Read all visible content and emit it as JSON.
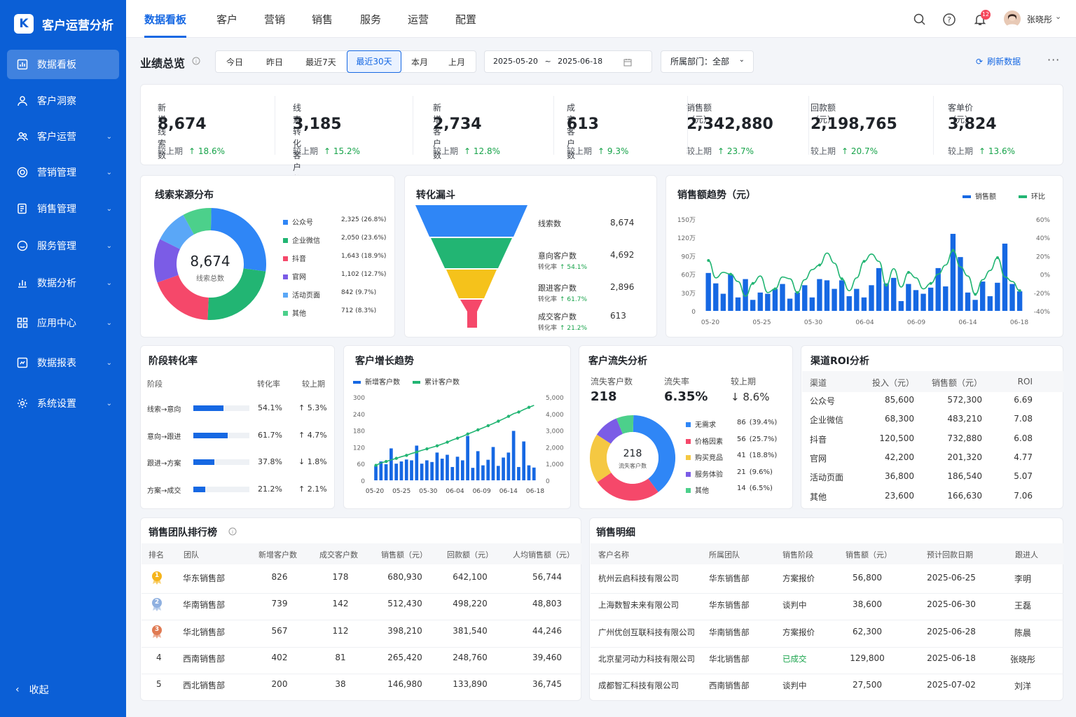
{
  "app": {
    "title": "客户运营分析",
    "logo": "K"
  },
  "sidebar": {
    "items": [
      {
        "label": "数据看板"
      },
      {
        "label": "客户洞察"
      },
      {
        "label": "客户运营"
      },
      {
        "label": "营销管理"
      },
      {
        "label": "销售管理"
      },
      {
        "label": "服务管理"
      },
      {
        "label": "数据分析"
      },
      {
        "label": "应用中心"
      },
      {
        "label": "数据报表"
      },
      {
        "label": "系统设置"
      }
    ],
    "collapse": "收起"
  },
  "topnav": {
    "tabs": [
      "数据看板",
      "客户",
      "营销",
      "销售",
      "服务",
      "运营",
      "配置"
    ],
    "notif_count": "12",
    "user": "张晓彤"
  },
  "toolbar": {
    "title": "业绩总览",
    "ranges": [
      "今日",
      "昨日",
      "最近7天",
      "最近30天",
      "本月",
      "上月"
    ],
    "date_from": "2025-05-20",
    "date_sep": "~",
    "date_to": "2025-06-18",
    "dept": "所属部门：全部",
    "refresh": "刷新数据"
  },
  "kpis": [
    {
      "label": "新增线索数",
      "value": "8,674",
      "cmp": "较上期",
      "delta": "18.6%"
    },
    {
      "label": "线索转化客户数",
      "value": "3,185",
      "cmp": "较上期",
      "delta": "15.2%"
    },
    {
      "label": "新增客户数",
      "value": "2,734",
      "cmp": "较上期",
      "delta": "12.8%"
    },
    {
      "label": "成交客户数",
      "value": "613",
      "cmp": "较上期",
      "delta": "9.3%"
    },
    {
      "label": "销售额（元）",
      "value": "2,342,880",
      "cmp": "较上期",
      "delta": "23.7%"
    },
    {
      "label": "回款额（元）",
      "value": "2,198,765",
      "cmp": "较上期",
      "delta": "20.7%"
    },
    {
      "label": "客单价（元）",
      "value": "3,824",
      "cmp": "较上期",
      "delta": "13.6%"
    }
  ],
  "source": {
    "title": "线索来源分布",
    "total": "8,674",
    "total_label": "线索总数",
    "items": [
      {
        "name": "公众号",
        "value": "2,325",
        "pct": "(26.8%)",
        "share": 26.8,
        "color": "#2f86f6"
      },
      {
        "name": "企业微信",
        "value": "2,050",
        "pct": "(23.6%)",
        "share": 23.6,
        "color": "#22b573"
      },
      {
        "name": "抖音",
        "value": "1,643",
        "pct": "(18.9%)",
        "share": 18.9,
        "color": "#f5486a"
      },
      {
        "name": "官网",
        "value": "1,102",
        "pct": "(12.7%)",
        "share": 12.7,
        "color": "#7b5ce6"
      },
      {
        "name": "活动页面",
        "value": "842",
        "pct": "(9.7%)",
        "share": 9.7,
        "color": "#5aa7f7"
      },
      {
        "name": "其他",
        "value": "712",
        "pct": "(8.3%)",
        "share": 8.3,
        "color": "#4cd08b"
      }
    ]
  },
  "funnel": {
    "title": "转化漏斗",
    "stages": [
      {
        "name": "线索数",
        "value": "8,674",
        "rate_label": "",
        "rate": ""
      },
      {
        "name": "意向客户数",
        "value": "4,692",
        "rate_label": "转化率",
        "rate": "54.1%"
      },
      {
        "name": "跟进客户数",
        "value": "2,896",
        "rate_label": "转化率",
        "rate": "61.7%"
      },
      {
        "name": "成交客户数",
        "value": "613",
        "rate_label": "转化率",
        "rate": "21.2%"
      }
    ]
  },
  "sales_trend": {
    "title": "销售额趋势（元）",
    "legend": [
      "销售额",
      "环比"
    ]
  },
  "stage": {
    "title": "阶段转化率",
    "headers": [
      "阶段",
      "转化率",
      "较上期"
    ],
    "rows": [
      {
        "name": "线索→意向",
        "rate": "54.1%",
        "delta": "5.3%",
        "dir": "up",
        "fill": 0.541
      },
      {
        "name": "意向→跟进",
        "rate": "61.7%",
        "delta": "4.7%",
        "dir": "up",
        "fill": 0.617
      },
      {
        "name": "跟进→方案",
        "rate": "37.8%",
        "delta": "1.8%",
        "dir": "down",
        "fill": 0.378
      },
      {
        "name": "方案→成交",
        "rate": "21.2%",
        "delta": "2.1%",
        "dir": "up",
        "fill": 0.212
      }
    ]
  },
  "growth": {
    "title": "客户增长趋势",
    "legend": [
      "新增客户数",
      "累计客户数"
    ]
  },
  "churn": {
    "title": "客户流失分析",
    "headers": [
      "流失客户数",
      "流失率",
      "较上期"
    ],
    "count": "218",
    "rate": "6.35%",
    "delta": "8.6%",
    "center_label": "流失客户数",
    "reasons": [
      {
        "name": "无需求",
        "value": "86",
        "pct": "(39.4%)",
        "share": 39.4,
        "color": "#2f86f6"
      },
      {
        "name": "价格因素",
        "value": "56",
        "pct": "(25.7%)",
        "share": 25.7,
        "color": "#f5486a"
      },
      {
        "name": "购买竞品",
        "value": "41",
        "pct": "(18.8%)",
        "share": 18.8,
        "color": "#f5c842"
      },
      {
        "name": "服务体验",
        "value": "21",
        "pct": "(9.6%)",
        "share": 9.6,
        "color": "#7b5ce6"
      },
      {
        "name": "其他",
        "value": "14",
        "pct": "(6.5%)",
        "share": 6.5,
        "color": "#4cd08b"
      }
    ]
  },
  "roi": {
    "title": "渠道ROI分析",
    "headers": [
      "渠道",
      "投入（元）",
      "销售额（元）",
      "ROI"
    ],
    "rows": [
      [
        "公众号",
        "85,600",
        "572,300",
        "6.69"
      ],
      [
        "企业微信",
        "68,300",
        "483,210",
        "7.08"
      ],
      [
        "抖音",
        "120,500",
        "732,880",
        "6.08"
      ],
      [
        "官网",
        "42,200",
        "201,320",
        "4.77"
      ],
      [
        "活动页面",
        "36,800",
        "186,540",
        "5.07"
      ],
      [
        "其他",
        "23,600",
        "166,630",
        "7.06"
      ]
    ]
  },
  "ranking": {
    "title": "销售团队排行榜",
    "headers": [
      "排名",
      "团队",
      "新增客户数",
      "成交客户数",
      "销售额（元）",
      "回款额（元）",
      "人均销售额（元）"
    ],
    "rows": [
      [
        "1",
        "华东销售部",
        "826",
        "178",
        "680,930",
        "642,100",
        "56,744"
      ],
      [
        "2",
        "华南销售部",
        "739",
        "142",
        "512,430",
        "498,220",
        "48,803"
      ],
      [
        "3",
        "华北销售部",
        "567",
        "112",
        "398,210",
        "381,540",
        "44,246"
      ],
      [
        "4",
        "西南销售部",
        "402",
        "81",
        "265,420",
        "248,760",
        "39,460"
      ],
      [
        "5",
        "西北销售部",
        "200",
        "38",
        "146,980",
        "133,890",
        "36,745"
      ]
    ]
  },
  "detail": {
    "title": "销售明细",
    "headers": [
      "客户名称",
      "所属团队",
      "销售阶段",
      "销售额（元）",
      "预计回款日期",
      "跟进人"
    ],
    "rows": [
      [
        "杭州云启科技有限公司",
        "华东销售部",
        "方案报价",
        "56,800",
        "2025-06-25",
        "李明"
      ],
      [
        "上海数智未来有限公司",
        "华东销售部",
        "谈判中",
        "38,600",
        "2025-06-30",
        "王磊"
      ],
      [
        "广州优创互联科技有限公司",
        "华南销售部",
        "方案报价",
        "62,300",
        "2025-06-28",
        "陈晨"
      ],
      [
        "北京星河动力科技有限公司",
        "华北销售部",
        "已成交",
        "129,800",
        "2025-06-18",
        "张晓彤"
      ],
      [
        "成都智汇科技有限公司",
        "西南销售部",
        "谈判中",
        "27,500",
        "2025-07-02",
        "刘洋"
      ]
    ]
  },
  "chart_data": [
    {
      "type": "bar",
      "title": "销售额趋势（元）",
      "x_ticks": [
        "05-20",
        "05-25",
        "05-30",
        "06-04",
        "06-09",
        "06-14",
        "06-18"
      ],
      "y_ticks": [
        "0",
        "30万",
        "60万",
        "90万",
        "120万",
        "150万"
      ],
      "y2_ticks": [
        "-40%",
        "-20%",
        "0%",
        "20%",
        "40%",
        "60%"
      ],
      "ylim": [
        0,
        150
      ],
      "y2lim": [
        -40,
        60
      ],
      "series": [
        {
          "name": "销售额",
          "kind": "bar",
          "values": [
            62,
            45,
            28,
            60,
            22,
            52,
            18,
            30,
            28,
            36,
            44,
            20,
            30,
            42,
            22,
            52,
            50,
            36,
            50,
            24,
            36,
            22,
            42,
            70,
            45,
            54,
            16,
            44,
            34,
            28,
            38,
            70,
            40,
            126,
            88,
            30,
            18,
            48,
            24,
            46,
            110,
            44,
            32
          ]
        },
        {
          "name": "环比",
          "kind": "line",
          "values": [
            15,
            -4,
            2,
            0,
            -8,
            -24,
            -10,
            -2,
            -20,
            -16,
            -3,
            -5,
            -20,
            -6,
            5,
            10,
            23,
            12,
            -5,
            -18,
            -4,
            14,
            22,
            14,
            -12,
            6,
            -14,
            2,
            -4,
            -16,
            -10,
            0,
            10,
            26,
            8,
            -2,
            -22,
            -6,
            4,
            18,
            -3,
            -8,
            -18
          ]
        }
      ]
    },
    {
      "type": "bar",
      "title": "客户增长趋势",
      "x_ticks": [
        "05-20",
        "05-25",
        "05-30",
        "06-04",
        "06-09",
        "06-14",
        "06-18"
      ],
      "y_ticks": [
        "0",
        "60",
        "120",
        "180",
        "240",
        "300"
      ],
      "y2_ticks": [
        "0",
        "1,000",
        "2,000",
        "3,000",
        "4,000",
        "5,000"
      ],
      "ylim": [
        0,
        300
      ],
      "y2lim": [
        0,
        5000
      ],
      "series": [
        {
          "name": "新增客户数",
          "kind": "bar",
          "values": [
            52,
            68,
            58,
            115,
            60,
            68,
            75,
            72,
            125,
            60,
            72,
            66,
            100,
            78,
            92,
            48,
            85,
            72,
            160,
            45,
            105,
            54,
            74,
            120,
            52,
            82,
            100,
            178,
            48,
            140,
            54,
            46
          ]
        },
        {
          "name": "累计客户数",
          "kind": "line",
          "values": [
            900,
            1050,
            1130,
            1230,
            1320,
            1420,
            1500,
            1610,
            1700,
            1800,
            1890,
            1980,
            2070,
            2180,
            2290,
            2420,
            2530,
            2640,
            2780,
            2900,
            3030,
            3150,
            3280,
            3410,
            3550,
            3690,
            3840,
            4000,
            4100,
            4250,
            4380,
            4500
          ]
        }
      ]
    }
  ]
}
